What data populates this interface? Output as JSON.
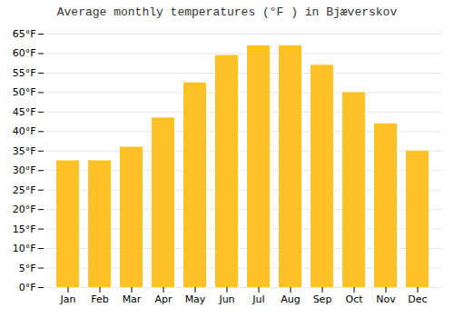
{
  "chart_data": {
    "type": "bar",
    "title": "Average monthly temperatures (°F ) in Bjæverskov",
    "categories": [
      "Jan",
      "Feb",
      "Mar",
      "Apr",
      "May",
      "Jun",
      "Jul",
      "Aug",
      "Sep",
      "Oct",
      "Nov",
      "Dec"
    ],
    "values": [
      32.5,
      32.5,
      36.0,
      43.5,
      52.5,
      59.5,
      62.0,
      62.0,
      57.0,
      50.0,
      42.0,
      35.0
    ],
    "color": "#FFC125",
    "ylim": [
      0,
      65
    ],
    "yticks": [
      {
        "value": 0,
        "label": "0°F"
      },
      {
        "value": 5,
        "label": "5°F"
      },
      {
        "value": 10,
        "label": "10°F"
      },
      {
        "value": 15,
        "label": "15°F"
      },
      {
        "value": 20,
        "label": "20°F"
      },
      {
        "value": 25,
        "label": "25°F"
      },
      {
        "value": 30,
        "label": "30°F"
      },
      {
        "value": 35,
        "label": "35°F"
      },
      {
        "value": 40,
        "label": "40°F"
      },
      {
        "value": 45,
        "label": "45°F"
      },
      {
        "value": 50,
        "label": "50°F"
      },
      {
        "value": 55,
        "label": "55°F"
      },
      {
        "value": 60,
        "label": "60°F"
      },
      {
        "value": 65,
        "label": "65°F"
      }
    ],
    "grid": true
  }
}
